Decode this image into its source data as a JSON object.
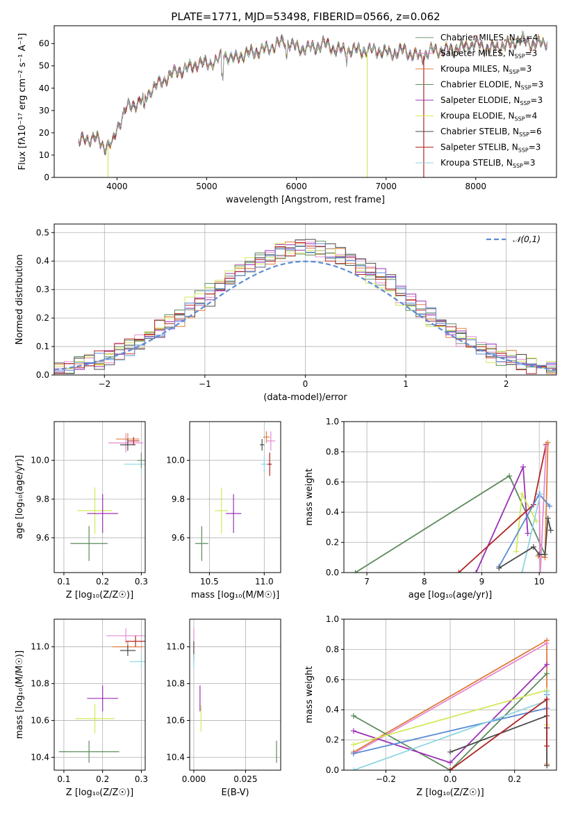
{
  "figure": {
    "title": "PLATE=1771, MJD=53498, FIBERID=0566, z=0.062"
  },
  "colors": {
    "chabrier_miles": "#6d8f6d",
    "salpeter_miles": "#e58ad0",
    "kroupa_miles": "#e07b39",
    "chabrier_elodie": "#5a8a5a",
    "salpeter_elodie": "#9b30b5",
    "kroupa_elodie": "#d4e85a",
    "chabrier_stelib": "#4a4a4a",
    "salpeter_stelib": "#b22222",
    "kroupa_stelib": "#8fd6e0",
    "gaussian": "#5b8bd6",
    "grid": "#b0b0b0"
  },
  "chart_data": [
    {
      "id": "spectrum",
      "type": "line",
      "title": "PLATE=1771, MJD=53498, FIBERID=0566, z=0.062",
      "xlabel": "wavelength [Angstrom, rest frame]",
      "ylabel": "Flux [fλ10⁻¹⁷ erg cm⁻² s⁻¹ A⁻¹]",
      "xlim": [
        3300,
        8900
      ],
      "ylim": [
        0,
        68
      ],
      "xticks": [
        4000,
        5000,
        6000,
        7000,
        8000
      ],
      "yticks": [
        0,
        10,
        20,
        30,
        40,
        50,
        60
      ],
      "grid": false,
      "legend_position": "top-right",
      "continuum": {
        "x": [
          3570,
          3650,
          3750,
          3850,
          3950,
          4000,
          4100,
          4200,
          4300,
          4400,
          4500,
          4600,
          4700,
          4800,
          4900,
          5000,
          5100,
          5200,
          5300,
          5400,
          5500,
          5600,
          5700,
          5800,
          5900,
          6000,
          6100,
          6200,
          6300,
          6400,
          6500,
          6600,
          6700,
          6800,
          6900,
          7000,
          7100,
          7200,
          7300,
          7400,
          7500,
          7600,
          7700,
          7800,
          7900,
          8000,
          8100,
          8200,
          8300,
          8400,
          8500,
          8600,
          8700,
          8800
        ],
        "y": [
          16,
          17,
          18,
          14,
          15,
          22,
          31,
          33,
          35,
          40,
          43,
          46,
          48,
          49,
          51,
          51,
          52,
          55,
          53,
          55,
          56,
          57,
          58,
          60,
          61,
          58,
          58,
          58,
          60,
          58,
          57,
          57,
          57,
          57,
          57,
          56,
          56,
          57,
          55,
          54,
          57,
          57,
          57,
          58,
          59,
          60,
          58,
          58,
          59,
          60,
          62,
          60,
          60,
          61
        ]
      },
      "series": [
        {
          "name": "Chabrier MILES, N_SSP=4",
          "label_main": "Chabrier MILES, N",
          "label_sub": "SSP",
          "label_end": "=4",
          "color_key": "chabrier_miles"
        },
        {
          "name": "Salpeter MILES, N_SSP=3",
          "label_main": "Salpeter MILES, N",
          "label_sub": "SSP",
          "label_end": "=3",
          "color_key": "salpeter_miles"
        },
        {
          "name": "Kroupa MILES, N_SSP=3",
          "label_main": "Kroupa MILES, N",
          "label_sub": "SSP",
          "label_end": "=3",
          "color_key": "kroupa_miles"
        },
        {
          "name": "Chabrier ELODIE, N_SSP=3",
          "label_main": "Chabrier ELODIE, N",
          "label_sub": "SSP",
          "label_end": "=3",
          "color_key": "chabrier_elodie"
        },
        {
          "name": "Salpeter ELODIE, N_SSP=3",
          "label_main": "Salpeter ELODIE, N",
          "label_sub": "SSP",
          "label_end": "=3",
          "color_key": "salpeter_elodie"
        },
        {
          "name": "Kroupa ELODIE, N_SSP=4",
          "label_main": "Kroupa ELODIE, N",
          "label_sub": "SSP",
          "label_end": "=4",
          "color_key": "kroupa_elodie"
        },
        {
          "name": "Chabrier STELIB, N_SSP=6",
          "label_main": "Chabrier STELIB, N",
          "label_sub": "SSP",
          "label_end": "=6",
          "color_key": "chabrier_stelib"
        },
        {
          "name": "Salpeter STELIB, N_SSP=3",
          "label_main": "Salpeter STELIB, N",
          "label_sub": "SSP",
          "label_end": "=3",
          "color_key": "salpeter_stelib"
        },
        {
          "name": "Kroupa STELIB, N_SSP=3",
          "label_main": "Kroupa STELIB, N",
          "label_sub": "SSP",
          "label_end": "=3",
          "color_key": "kroupa_stelib"
        }
      ],
      "spikes": [
        {
          "x": 3900,
          "color_key": "kroupa_elodie"
        },
        {
          "x": 6790,
          "color_key": "kroupa_elodie"
        },
        {
          "x": 7420,
          "color_key": "salpeter_stelib"
        }
      ]
    },
    {
      "id": "residuals",
      "type": "bar",
      "xlabel": "(data-model)/error",
      "ylabel": "Normed distribution",
      "xlim": [
        -2.5,
        2.5
      ],
      "ylim": [
        0,
        0.53
      ],
      "xticks": [
        -2,
        -1,
        0,
        1,
        2
      ],
      "yticks": [
        0.0,
        0.1,
        0.2,
        0.3,
        0.4,
        0.5
      ],
      "grid": true,
      "legend_position": "top-right",
      "legend_label": "𝒩(0,1)",
      "bin_width": 0.1,
      "bin_start": -2.5,
      "series": [
        {
          "color_key": "chabrier_miles",
          "shift": 0.0
        },
        {
          "color_key": "salpeter_miles",
          "shift": 0.02
        },
        {
          "color_key": "kroupa_miles",
          "shift": -0.02
        },
        {
          "color_key": "chabrier_elodie",
          "shift": 0.04
        },
        {
          "color_key": "salpeter_elodie",
          "shift": -0.03
        },
        {
          "color_key": "kroupa_elodie",
          "shift": 0.05
        },
        {
          "color_key": "chabrier_stelib",
          "shift": -0.05
        },
        {
          "color_key": "salpeter_stelib",
          "shift": 0.03
        },
        {
          "color_key": "gaussian",
          "shift": -0.01
        }
      ]
    },
    {
      "id": "age_vs_Z",
      "type": "scatter",
      "xlabel": "Z [log₁₀(Z/Z☉)]",
      "ylabel": "age  [log₁₀(age/yr)]",
      "xlim": [
        0.075,
        0.31
      ],
      "ylim": [
        9.42,
        10.2
      ],
      "xticks": [
        0.1,
        0.2,
        0.3
      ],
      "yticks": [
        9.6,
        9.8,
        10.0
      ],
      "grid": true,
      "points": [
        {
          "x": 0.165,
          "y": 9.57,
          "xerr": 0.048,
          "yerr": 0.09,
          "color_key": "chabrier_elodie"
        },
        {
          "x": 0.18,
          "y": 9.74,
          "xerr": 0.045,
          "yerr": 0.12,
          "color_key": "kroupa_elodie"
        },
        {
          "x": 0.2,
          "y": 9.725,
          "xerr": 0.04,
          "yerr": 0.1,
          "color_key": "salpeter_elodie"
        },
        {
          "x": 0.26,
          "y": 10.09,
          "xerr": 0.045,
          "yerr": 0.05,
          "color_key": "salpeter_miles"
        },
        {
          "x": 0.265,
          "y": 10.11,
          "xerr": 0.03,
          "yerr": 0.03,
          "color_key": "kroupa_miles"
        },
        {
          "x": 0.265,
          "y": 10.08,
          "xerr": 0.02,
          "yerr": 0.03,
          "color_key": "chabrier_stelib"
        },
        {
          "x": 0.28,
          "y": 10.1,
          "xerr": 0.015,
          "yerr": 0.02,
          "color_key": "salpeter_stelib"
        },
        {
          "x": 0.3,
          "y": 9.98,
          "xerr": 0.045,
          "yerr": 0.05,
          "color_key": "kroupa_stelib"
        },
        {
          "x": 0.3,
          "y": 10.0,
          "xerr": 0.01,
          "yerr": 0.04,
          "color_key": "chabrier_miles"
        }
      ]
    },
    {
      "id": "age_vs_mass",
      "type": "scatter",
      "xlabel": "mass [log₁₀(M/M☉)]",
      "ylabel": "",
      "xlim": [
        10.32,
        11.15
      ],
      "ylim": [
        9.42,
        10.2
      ],
      "xticks": [
        10.5,
        11.0
      ],
      "yticks": [
        9.6,
        9.8,
        10.0
      ],
      "grid": true,
      "points": [
        {
          "x": 10.43,
          "y": 9.57,
          "xerr": 0.06,
          "yerr": 0.09,
          "color_key": "chabrier_elodie"
        },
        {
          "x": 10.61,
          "y": 9.74,
          "xerr": 0.06,
          "yerr": 0.12,
          "color_key": "kroupa_elodie"
        },
        {
          "x": 10.72,
          "y": 9.725,
          "xerr": 0.07,
          "yerr": 0.1,
          "color_key": "salpeter_elodie"
        },
        {
          "x": 10.98,
          "y": 10.08,
          "xerr": 0.02,
          "yerr": 0.03,
          "color_key": "chabrier_stelib"
        },
        {
          "x": 11.02,
          "y": 10.12,
          "xerr": 0.03,
          "yerr": 0.03,
          "color_key": "kroupa_miles"
        },
        {
          "x": 11.06,
          "y": 10.1,
          "xerr": 0.04,
          "yerr": 0.05,
          "color_key": "salpeter_miles"
        },
        {
          "x": 11.05,
          "y": 9.98,
          "xerr": 0.02,
          "yerr": 0.06,
          "color_key": "salpeter_stelib"
        },
        {
          "x": 11.0,
          "y": 9.98,
          "xerr": 0.03,
          "yerr": 0.04,
          "color_key": "kroupa_stelib"
        }
      ]
    },
    {
      "id": "weight_vs_age",
      "type": "line",
      "xlabel": "age  [log₁₀(age/yr)]",
      "ylabel": "mass weight",
      "xlim": [
        6.6,
        10.3
      ],
      "ylim": [
        0,
        1.0
      ],
      "xticks": [
        7,
        8,
        9,
        10
      ],
      "yticks": [
        0.0,
        0.2,
        0.4,
        0.6,
        0.8,
        1.0
      ],
      "grid": true,
      "series": [
        {
          "color_key": "chabrier_elodie",
          "x": [
            6.8,
            9.48,
            10.1
          ],
          "y": [
            0.0,
            0.64,
            0.12
          ]
        },
        {
          "color_key": "salpeter_elodie",
          "x": [
            8.9,
            9.72,
            9.8
          ],
          "y": [
            0.0,
            0.7,
            0.26
          ]
        },
        {
          "color_key": "kroupa_elodie",
          "x": [
            9.6,
            9.7,
            9.95
          ],
          "y": [
            0.14,
            0.52,
            0.34
          ]
        },
        {
          "color_key": "salpeter_stelib",
          "x": [
            8.6,
            9.9,
            10.12
          ],
          "y": [
            0.0,
            0.45,
            0.85
          ]
        },
        {
          "color_key": "kroupa_miles",
          "x": [
            9.98,
            10.1,
            10.15
          ],
          "y": [
            0.11,
            0.1,
            0.86
          ]
        },
        {
          "color_key": "salpeter_miles",
          "x": [
            10.0,
            10.02,
            10.12
          ],
          "y": [
            0.5,
            0.0,
            0.84
          ]
        },
        {
          "color_key": "gaussian",
          "x": [
            9.3,
            10.0,
            10.18
          ],
          "y": [
            0.04,
            0.52,
            0.44
          ]
        },
        {
          "color_key": "kroupa_stelib",
          "x": [
            9.7,
            10.02
          ],
          "y": [
            0.0,
            0.52
          ]
        },
        {
          "color_key": "chabrier_stelib",
          "x": [
            9.3,
            9.9,
            10.0,
            10.1,
            10.15,
            10.2
          ],
          "y": [
            0.03,
            0.17,
            0.12,
            0.12,
            0.36,
            0.28
          ]
        }
      ]
    },
    {
      "id": "mass_vs_Z",
      "type": "scatter",
      "xlabel": "Z [log₁₀(Z/Z☉)]",
      "ylabel": "mass [log₁₀(M/M☉)]",
      "xlim": [
        0.075,
        0.31
      ],
      "ylim": [
        10.33,
        11.15
      ],
      "xticks": [
        0.1,
        0.2,
        0.3
      ],
      "yticks": [
        10.4,
        10.6,
        10.8,
        11.0
      ],
      "grid": true,
      "points": [
        {
          "x": 0.165,
          "y": 10.43,
          "xerr": 0.078,
          "yerr": 0.06,
          "color_key": "chabrier_elodie"
        },
        {
          "x": 0.18,
          "y": 10.61,
          "xerr": 0.05,
          "yerr": 0.08,
          "color_key": "kroupa_elodie"
        },
        {
          "x": 0.2,
          "y": 10.72,
          "xerr": 0.04,
          "yerr": 0.07,
          "color_key": "salpeter_elodie"
        },
        {
          "x": 0.26,
          "y": 11.06,
          "xerr": 0.05,
          "yerr": 0.04,
          "color_key": "salpeter_miles"
        },
        {
          "x": 0.265,
          "y": 11.0,
          "xerr": 0.04,
          "yerr": 0.03,
          "color_key": "kroupa_miles"
        },
        {
          "x": 0.265,
          "y": 10.98,
          "xerr": 0.02,
          "yerr": 0.03,
          "color_key": "chabrier_stelib"
        },
        {
          "x": 0.285,
          "y": 11.03,
          "xerr": 0.025,
          "yerr": 0.03,
          "color_key": "salpeter_stelib"
        },
        {
          "x": 0.3,
          "y": 10.92,
          "xerr": 0.03,
          "yerr": 0.04,
          "color_key": "kroupa_stelib"
        }
      ]
    },
    {
      "id": "mass_vs_ebv",
      "type": "scatter",
      "xlabel": "E(B-V)",
      "ylabel": "",
      "xlim": [
        -0.002,
        0.042
      ],
      "ylim": [
        10.33,
        11.15
      ],
      "xticks": [
        0.0,
        0.025
      ],
      "xticklabels": [
        "0.000",
        "0.025"
      ],
      "yticks": [
        10.4,
        10.6,
        10.8,
        11.0
      ],
      "grid": true,
      "points": [
        {
          "x": 0.0,
          "y": 11.0,
          "xerr": 0.0,
          "yerr": 0.1,
          "color_key": "salpeter_miles"
        },
        {
          "x": 0.0,
          "y": 10.98,
          "xerr": 0.0,
          "yerr": 0.05,
          "color_key": "chabrier_stelib"
        },
        {
          "x": 0.0,
          "y": 10.92,
          "xerr": 0.0,
          "yerr": 0.04,
          "color_key": "kroupa_stelib"
        },
        {
          "x": 0.003,
          "y": 10.72,
          "xerr": 0.0,
          "yerr": 0.07,
          "color_key": "salpeter_elodie"
        },
        {
          "x": 0.0035,
          "y": 10.61,
          "xerr": 0.0,
          "yerr": 0.07,
          "color_key": "kroupa_elodie"
        },
        {
          "x": 0.04,
          "y": 10.43,
          "xerr": 0.0,
          "yerr": 0.06,
          "color_key": "chabrier_elodie"
        }
      ]
    },
    {
      "id": "weight_vs_Z",
      "type": "line",
      "xlabel": "Z [log₁₀(Z/Z☉)]",
      "ylabel": "mass weight",
      "xlim": [
        -0.33,
        0.33
      ],
      "ylim": [
        0,
        1.0
      ],
      "xticks": [
        -0.2,
        0.0,
        0.2
      ],
      "xticklabels": [
        "−0.2",
        "0.0",
        "0.2"
      ],
      "yticks": [
        0.0,
        0.2,
        0.4,
        0.6,
        0.8,
        1.0
      ],
      "grid": true,
      "series": [
        {
          "color_key": "kroupa_miles",
          "x": [
            -0.3,
            0.3,
            0.3
          ],
          "y": [
            0.12,
            0.86,
            0.04
          ]
        },
        {
          "color_key": "salpeter_miles",
          "x": [
            -0.3,
            0.3
          ],
          "y": [
            0.11,
            0.84
          ]
        },
        {
          "color_key": "chabrier_elodie",
          "x": [
            -0.3,
            0.0,
            0.3
          ],
          "y": [
            0.36,
            0.0,
            0.64
          ]
        },
        {
          "color_key": "salpeter_elodie",
          "x": [
            -0.3,
            0.0,
            0.3
          ],
          "y": [
            0.26,
            0.05,
            0.7
          ]
        },
        {
          "color_key": "kroupa_elodie",
          "x": [
            -0.3,
            0.3,
            0.3
          ],
          "y": [
            0.17,
            0.53,
            0.3
          ]
        },
        {
          "color_key": "gaussian",
          "x": [
            -0.3,
            0.3,
            0.3
          ],
          "y": [
            0.11,
            0.41,
            0.5
          ]
        },
        {
          "color_key": "kroupa_stelib",
          "x": [
            -0.3,
            0.3,
            0.3
          ],
          "y": [
            0.0,
            0.46,
            0.52
          ]
        },
        {
          "color_key": "chabrier_stelib",
          "x": [
            0.0,
            0.3,
            0.3,
            0.3
          ],
          "y": [
            0.12,
            0.36,
            0.28,
            0.03
          ]
        },
        {
          "color_key": "salpeter_stelib",
          "x": [
            0.0,
            0.3,
            0.3
          ],
          "y": [
            0.0,
            0.47,
            0.16
          ]
        }
      ]
    }
  ]
}
